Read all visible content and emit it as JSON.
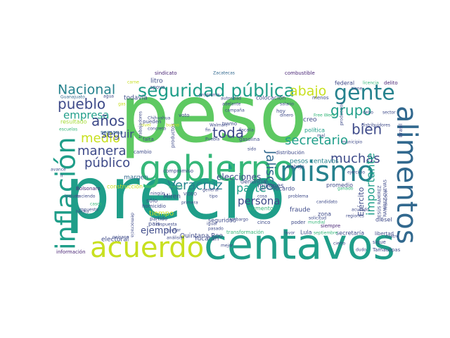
{
  "palette": {
    "dark_purple": "#482475",
    "indigo": "#3e4a89",
    "blue": "#31688e",
    "teal_blue": "#26828e",
    "teal": "#1f9e89",
    "sea_green": "#35b779",
    "green": "#5ec962",
    "light_green": "#a5db36",
    "lime": "#c8e020",
    "yellow": "#fde725"
  },
  "words": [
    {
      "text": "peso",
      "color": "green"
    },
    {
      "text": "precio",
      "color": "teal"
    },
    {
      "text": "gobierno",
      "color": "sea_green"
    },
    {
      "text": "mismo",
      "color": "teal_blue"
    },
    {
      "text": "centavos",
      "color": "teal"
    },
    {
      "text": "acuerdo",
      "color": "lime"
    },
    {
      "text": "alimentos",
      "color": "blue"
    },
    {
      "text": "inflación",
      "color": "teal"
    },
    {
      "text": "gente",
      "color": "teal_blue"
    },
    {
      "text": "seguridad pública",
      "color": "teal"
    },
    {
      "text": "Nacional",
      "color": "teal_blue"
    },
    {
      "text": "abajo",
      "color": "lime"
    },
    {
      "text": "grupo",
      "color": "teal"
    },
    {
      "text": "pueblo",
      "color": "indigo"
    },
    {
      "text": "empresa",
      "color": "teal"
    },
    {
      "text": "años",
      "color": "indigo"
    },
    {
      "text": "medio",
      "color": "lime"
    },
    {
      "text": "manera",
      "color": "indigo"
    },
    {
      "text": "público",
      "color": "indigo"
    },
    {
      "text": "toda",
      "color": "indigo"
    },
    {
      "text": "Veracruz",
      "color": "teal_blue"
    },
    {
      "text": "bien",
      "color": "indigo"
    },
    {
      "text": "secretario",
      "color": "teal"
    },
    {
      "text": "muchas",
      "color": "indigo"
    },
    {
      "text": "importante",
      "color": "teal"
    },
    {
      "text": "Jalisco",
      "color": "blue"
    },
    {
      "text": "seguir",
      "color": "indigo"
    },
    {
      "text": "parte",
      "color": "teal"
    },
    {
      "text": "persona",
      "color": "indigo"
    },
    {
      "text": "elecciones",
      "color": "indigo"
    },
    {
      "text": "ejemplo",
      "color": "indigo"
    },
    {
      "text": "Ejército",
      "color": "indigo"
    },
    {
      "text": "litro",
      "color": "indigo"
    },
    {
      "text": "semana",
      "color": "blue"
    },
    {
      "text": "todavía",
      "color": "indigo"
    },
    {
      "text": "resultado",
      "color": "light_green"
    },
    {
      "text": "margen",
      "color": "blue"
    },
    {
      "text": "Miren",
      "color": "indigo"
    },
    {
      "text": "compromiso",
      "color": "indigo"
    },
    {
      "text": "Quintana Roo",
      "color": "indigo"
    },
    {
      "text": "Yucatán",
      "color": "indigo"
    },
    {
      "text": "electoral",
      "color": "indigo"
    },
    {
      "text": "país",
      "color": "indigo"
    },
    {
      "text": "tiempo",
      "color": "lime"
    },
    {
      "text": "sólo",
      "color": "indigo"
    },
    {
      "text": "construcción",
      "color": "lime"
    },
    {
      "text": "homicidio",
      "color": "indigo"
    },
    {
      "text": "partido",
      "color": "indigo"
    },
    {
      "text": "seguridad",
      "color": "indigo"
    },
    {
      "text": "millones",
      "color": "indigo"
    },
    {
      "text": "denuncia",
      "color": "indigo"
    },
    {
      "text": "aumento",
      "color": "sea_green"
    },
    {
      "text": "pesos centavos",
      "color": "teal_blue"
    },
    {
      "text": "promedio",
      "color": "indigo"
    },
    {
      "text": "Lula",
      "color": "indigo"
    },
    {
      "text": "fraude",
      "color": "indigo"
    },
    {
      "text": "zona",
      "color": "indigo"
    },
    {
      "text": "secretaría",
      "color": "indigo"
    },
    {
      "text": "Ricardo",
      "color": "indigo"
    },
    {
      "text": "creo",
      "color": "indigo"
    },
    {
      "text": "política",
      "color": "teal"
    },
    {
      "text": "federal",
      "color": "indigo"
    },
    {
      "text": "colocación",
      "color": "indigo"
    },
    {
      "text": "sindicato",
      "color": "dark_purple"
    },
    {
      "text": "Zacatecas",
      "color": "blue"
    },
    {
      "text": "combustible",
      "color": "dark_purple"
    },
    {
      "text": "Brasil",
      "color": "indigo"
    },
    {
      "text": "delito",
      "color": "dark_purple"
    },
    {
      "text": "licencia",
      "color": "sea_green"
    },
    {
      "text": "Chihuahua",
      "color": "indigo"
    },
    {
      "text": "Walmart",
      "color": "indigo"
    },
    {
      "text": "Puebla",
      "color": "indigo"
    },
    {
      "text": "Guanajuato",
      "color": "blue"
    },
    {
      "text": "Tamaulipas",
      "color": "indigo"
    },
    {
      "text": "información",
      "color": "dark_purple"
    },
    {
      "text": "Bolsonaro",
      "color": "dark_purple"
    },
    {
      "text": "diésel",
      "color": "indigo"
    },
    {
      "text": "libertad",
      "color": "indigo"
    },
    {
      "text": "sigue",
      "color": "indigo"
    },
    {
      "text": "siempre",
      "color": "dark_purple"
    },
    {
      "text": "trabajo",
      "color": "indigo"
    },
    {
      "text": "distribución",
      "color": "indigo"
    },
    {
      "text": "gasolina",
      "color": "indigo"
    },
    {
      "text": "fiscalía",
      "color": "indigo"
    },
    {
      "text": "tramo",
      "color": "indigo"
    },
    {
      "text": "voto",
      "color": "indigo"
    },
    {
      "text": "pueden",
      "color": "indigo"
    },
    {
      "text": "falta",
      "color": "indigo"
    },
    {
      "text": "apoyo",
      "color": "indigo"
    },
    {
      "text": "programa",
      "color": "indigo"
    },
    {
      "text": "respuesta",
      "color": "indigo"
    },
    {
      "text": "análisis",
      "color": "indigo"
    },
    {
      "text": "democracia",
      "color": "indigo"
    },
    {
      "text": "primera",
      "color": "indigo"
    },
    {
      "text": "general",
      "color": "indigo"
    },
    {
      "text": "transformación",
      "color": "sea_green"
    },
    {
      "text": "cinco",
      "color": "indigo"
    },
    {
      "text": "poder",
      "color": "indigo"
    },
    {
      "text": "problema",
      "color": "indigo"
    },
    {
      "text": "candidato",
      "color": "indigo"
    },
    {
      "text": "embargo",
      "color": "indigo"
    },
    {
      "text": "cosa",
      "color": "indigo"
    },
    {
      "text": "regiones",
      "color": "indigo"
    },
    {
      "text": "septiembre",
      "color": "sea_green"
    },
    {
      "text": "Free Week",
      "color": "sea_green"
    },
    {
      "text": "dinero",
      "color": "indigo"
    },
    {
      "text": "hoy",
      "color": "indigo"
    },
    {
      "text": "menos",
      "color": "indigo"
    },
    {
      "text": "municipio",
      "color": "indigo"
    },
    {
      "text": "mal",
      "color": "indigo"
    },
    {
      "text": "nivel",
      "color": "lime"
    },
    {
      "text": "producción",
      "color": "indigo"
    },
    {
      "text": "JESÚS RAMÍREZ",
      "color": "indigo"
    },
    {
      "text": "RAMÍREZ CUEVAS",
      "color": "indigo"
    },
    {
      "text": "VIDEO",
      "color": "indigo"
    },
    {
      "text": "ayudar",
      "color": "indigo"
    },
    {
      "text": "distribuidores",
      "color": "indigo"
    },
    {
      "text": "dudo",
      "color": "indigo"
    },
    {
      "text": "cuatro",
      "color": "indigo"
    },
    {
      "text": "Francisco",
      "color": "indigo"
    },
    {
      "text": "salario",
      "color": "indigo"
    },
    {
      "text": "ejercicio",
      "color": "indigo"
    },
    {
      "text": "adelante",
      "color": "indigo"
    },
    {
      "text": "autoridad",
      "color": "indigo"
    },
    {
      "text": "concreto",
      "color": "indigo"
    },
    {
      "text": "productos",
      "color": "indigo"
    },
    {
      "text": "cambio",
      "color": "indigo"
    },
    {
      "text": "carne",
      "color": "lime"
    },
    {
      "text": "agua",
      "color": "indigo"
    },
    {
      "text": "incluso",
      "color": "indigo"
    },
    {
      "text": "haciendo",
      "color": "indigo"
    },
    {
      "text": "impuesto",
      "color": "indigo"
    },
    {
      "text": "escuelas",
      "color": "sea_green"
    },
    {
      "text": "avance",
      "color": "indigo"
    },
    {
      "text": "hecho",
      "color": "indigo"
    },
    {
      "text": "casos",
      "color": "sea_green"
    },
    {
      "text": "paisano",
      "color": "indigo"
    },
    {
      "text": "sido",
      "color": "indigo"
    },
    {
      "text": "mejor",
      "color": "indigo"
    },
    {
      "text": "tipo",
      "color": "indigo"
    },
    {
      "text": "pasado",
      "color": "indigo"
    },
    {
      "text": "favor",
      "color": "indigo"
    },
    {
      "text": "cierto",
      "color": "indigo"
    },
    {
      "text": "campaña",
      "color": "indigo"
    },
    {
      "text": "ir",
      "color": "indigo"
    },
    {
      "text": "fin",
      "color": "indigo"
    },
    {
      "text": "Pemex",
      "color": "sea_green"
    },
    {
      "text": "ningún",
      "color": "indigo"
    },
    {
      "text": "igual",
      "color": "indigo"
    },
    {
      "text": "ver",
      "color": "indigo"
    },
    {
      "text": "solicitud",
      "color": "indigo"
    },
    {
      "text": "mundial",
      "color": "sea_green"
    },
    {
      "text": "ganado",
      "color": "sea_green"
    },
    {
      "text": "debo",
      "color": "indigo"
    },
    {
      "text": "sector",
      "color": "indigo"
    },
    {
      "text": "tiene",
      "color": "indigo"
    },
    {
      "text": "gas",
      "color": "lime"
    },
    {
      "text": "bueno",
      "color": "lime"
    },
    {
      "text": "trabajadores",
      "color": "indigo"
    },
    {
      "text": "acusado",
      "color": "indigo"
    }
  ]
}
